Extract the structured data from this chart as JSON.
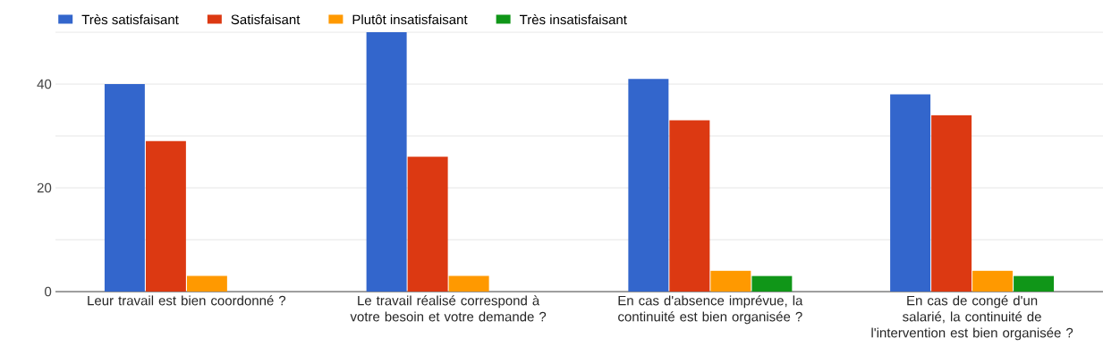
{
  "chart_data": {
    "type": "bar",
    "categories": [
      "Leur travail est bien coordonné ?",
      "Le travail réalisé correspond à votre besoin et votre demande ?",
      "En cas d'absence imprévue, la continuité est bien organisée ?",
      "En cas de congé d'un salarié, la continuité de l'intervention est bien organisée ?"
    ],
    "series": [
      {
        "name": "Très satisfaisant",
        "color": "#3366cc",
        "values": [
          40,
          50,
          41,
          38
        ]
      },
      {
        "name": "Satisfaisant",
        "color": "#dc3912",
        "values": [
          29,
          26,
          33,
          34
        ]
      },
      {
        "name": "Plutôt insatisfaisant",
        "color": "#ff9900",
        "values": [
          3,
          3,
          4,
          4
        ]
      },
      {
        "name": "Très insatisfaisant",
        "color": "#109618",
        "values": [
          null,
          null,
          3,
          3
        ]
      }
    ],
    "ylim": [
      0,
      50
    ],
    "yticks": [
      0,
      {
        "value": 10,
        "label": null
      },
      20,
      {
        "value": 30,
        "label": null
      },
      40,
      {
        "value": 50,
        "label": null
      }
    ],
    "grid": "y",
    "legend": "top left"
  }
}
